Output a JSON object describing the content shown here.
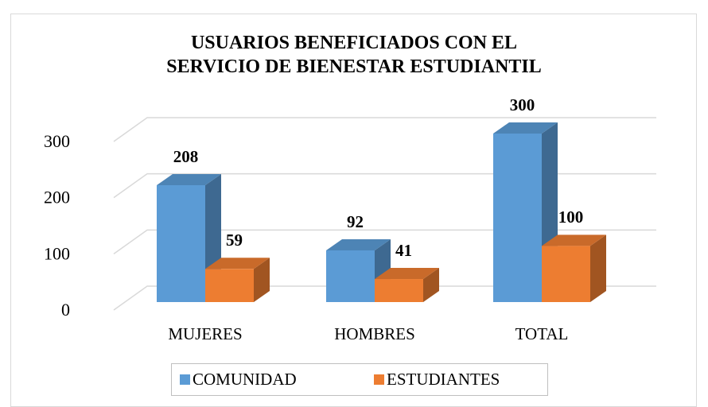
{
  "chart_data": {
    "type": "bar3d",
    "title": "USUARIOS BENEFICIADOS CON EL SERVICIO DE BIENESTAR ESTUDIANTIL",
    "categories": [
      "MUJERES",
      "HOMBRES",
      "TOTAL"
    ],
    "series": [
      {
        "name": "COMUNIDAD",
        "color": "#5b9bd5",
        "values": [
          208,
          92,
          300
        ]
      },
      {
        "name": "ESTUDIANTES",
        "color": "#ed7d31",
        "values": [
          59,
          41,
          100
        ]
      }
    ],
    "ylim": [
      0,
      300
    ],
    "yticks": [
      0,
      100,
      200,
      300
    ],
    "grid": true,
    "legend": "bottom"
  }
}
